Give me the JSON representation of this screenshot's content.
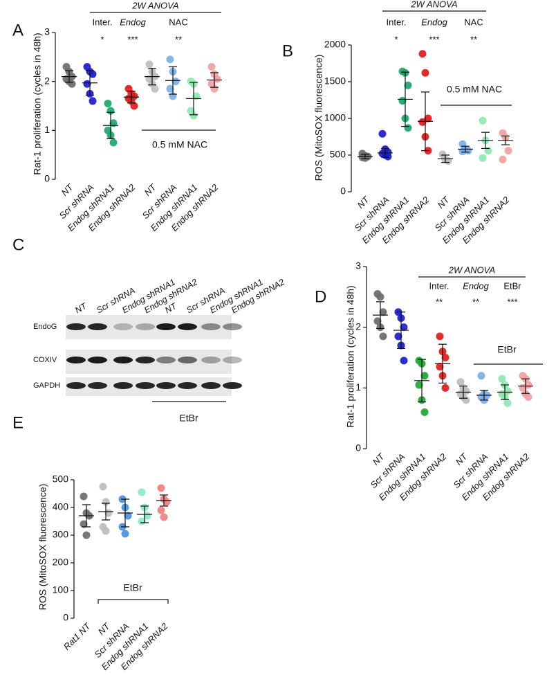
{
  "chart_data": [
    {
      "type": "strip",
      "panel_label": "A",
      "y_label": "Rat-1 proliferation (cycles in 48h)",
      "anova_title": "2W ANOVA",
      "anova_factors": [
        "Inter.",
        "Endog",
        "NAC"
      ],
      "significance": [
        "*",
        "***",
        "**"
      ],
      "treatment_label": "0.5 mM NAC",
      "ylim": [
        0,
        3
      ],
      "yticks": [
        0,
        1,
        2,
        3
      ],
      "series": [
        {
          "name": "NT",
          "color": "#6b6b6b",
          "values": [
            2.3,
            2.2,
            2.1,
            2.05,
            2.0,
            1.95
          ],
          "mean": 2.1,
          "sd": 0.12
        },
        {
          "name": "Scr shRNA",
          "color": "#1c1ccc",
          "values": [
            2.3,
            2.2,
            2.15,
            1.95,
            1.75,
            1.6
          ],
          "mean": 1.97,
          "sd": 0.25
        },
        {
          "name": "Endog shRNA1",
          "color": "#1aa86a",
          "values": [
            1.55,
            1.4,
            1.15,
            1.0,
            0.9,
            0.75
          ],
          "mean": 1.1,
          "sd": 0.27
        },
        {
          "name": "Endog shRNA2",
          "color": "#e01a1a",
          "values": [
            1.85,
            1.75,
            1.7,
            1.65,
            1.6,
            1.5
          ],
          "mean": 1.68,
          "sd": 0.12
        },
        {
          "name": "NT",
          "color": "#bdbdbd",
          "values": [
            2.35,
            2.2,
            2.1,
            2.05,
            1.95,
            1.85
          ],
          "mean": 2.1,
          "sd": 0.17
        },
        {
          "name": "Scr shRNA",
          "color": "#7ab0ea",
          "values": [
            2.45,
            2.2,
            2.0,
            1.85,
            1.7
          ],
          "mean": 2.02,
          "sd": 0.28
        },
        {
          "name": "Endog shRNA1",
          "color": "#8de8b0",
          "values": [
            2.0,
            1.95,
            1.7,
            1.4,
            1.3
          ],
          "mean": 1.65,
          "sd": 0.33
        },
        {
          "name": "Endog shRNA2",
          "color": "#f2a0a0",
          "values": [
            2.3,
            2.15,
            2.05,
            1.95,
            1.85
          ],
          "mean": 2.03,
          "sd": 0.15
        }
      ]
    },
    {
      "type": "strip",
      "panel_label": "B",
      "y_label": "ROS (MitoSOX fluorescence)",
      "anova_title": "2W ANOVA",
      "anova_factors": [
        "Inter.",
        "Endog",
        "NAC"
      ],
      "significance": [
        "*",
        "***",
        "**"
      ],
      "treatment_label": "0.5 mM NAC",
      "ylim": [
        0,
        2000
      ],
      "yticks": [
        0,
        500,
        1000,
        1500,
        2000
      ],
      "series": [
        {
          "name": "NT",
          "color": "#6b6b6b",
          "values": [
            520,
            490,
            480,
            470,
            460
          ],
          "mean": 480,
          "sd": 30
        },
        {
          "name": "Scr shRNA",
          "color": "#1c1ccc",
          "values": [
            790,
            580,
            540,
            520,
            500,
            480
          ],
          "mean": 530,
          "sd": 60
        },
        {
          "name": "Endog shRNA1",
          "color": "#1aa86a",
          "values": [
            1640,
            1620,
            1450,
            1240,
            1000,
            870
          ],
          "mean": 1260,
          "sd": 370
        },
        {
          "name": "Endog shRNA2",
          "color": "#e01a1a",
          "values": [
            1880,
            1620,
            1000,
            950,
            750,
            560
          ],
          "mean": 960,
          "sd": 400
        },
        {
          "name": "NT",
          "color": "#bdbdbd",
          "values": [
            510,
            440,
            420
          ],
          "mean": 450,
          "sd": 50
        },
        {
          "name": "Scr shRNA",
          "color": "#7ab0ea",
          "values": [
            650,
            580,
            560,
            550
          ],
          "mean": 580,
          "sd": 40
        },
        {
          "name": "Endog shRNA1",
          "color": "#8de8b0",
          "values": [
            970,
            700,
            560,
            460
          ],
          "mean": 700,
          "sd": 110
        },
        {
          "name": "Endog shRNA2",
          "color": "#f2a0a0",
          "values": [
            800,
            740,
            560,
            440
          ],
          "mean": 700,
          "sd": 60
        }
      ]
    },
    {
      "type": "strip",
      "panel_label": "D",
      "y_label": "Rat-1 proliferation (cycles in 48h)",
      "anova_title": "2W ANOVA",
      "anova_factors": [
        "Inter.",
        "Endog",
        "EtBr"
      ],
      "significance": [
        "**",
        "**",
        "***"
      ],
      "treatment_label": "EtBr",
      "ylim": [
        0,
        3
      ],
      "yticks": [
        0,
        1,
        2,
        3
      ],
      "series": [
        {
          "name": "NT",
          "color": "#6b6b6b",
          "values": [
            2.55,
            2.5,
            2.25,
            2.1,
            2.0,
            1.85
          ],
          "mean": 2.2,
          "sd": 0.22
        },
        {
          "name": "Scr shRNA",
          "color": "#1c1ccc",
          "values": [
            2.25,
            2.15,
            2.0,
            1.85,
            1.7,
            1.45
          ],
          "mean": 1.95,
          "sd": 0.3
        },
        {
          "name": "Endog shRNA1",
          "color": "#1aa830",
          "values": [
            1.45,
            1.4,
            1.2,
            1.05,
            0.8,
            0.6
          ],
          "mean": 1.12,
          "sd": 0.35
        },
        {
          "name": "Endog shRNA2",
          "color": "#e01a1a",
          "values": [
            1.85,
            1.6,
            1.5,
            1.35,
            1.2,
            1.0
          ],
          "mean": 1.4,
          "sd": 0.32
        },
        {
          "name": "NT",
          "color": "#bdbdbd",
          "values": [
            1.1,
            1.0,
            0.95,
            0.9,
            0.85,
            0.8
          ],
          "mean": 0.93,
          "sd": 0.1
        },
        {
          "name": "Scr shRNA",
          "color": "#7ab0ea",
          "values": [
            1.2,
            0.9,
            0.88,
            0.85,
            0.8
          ],
          "mean": 0.88,
          "sd": 0.08
        },
        {
          "name": "Endog shRNA1",
          "color": "#8de8b0",
          "values": [
            1.15,
            1.05,
            0.95,
            0.9,
            0.85,
            0.75
          ],
          "mean": 0.93,
          "sd": 0.12
        },
        {
          "name": "Endog shRNA2",
          "color": "#f2a0a0",
          "values": [
            1.2,
            1.15,
            1.05,
            1.0,
            0.9,
            0.85
          ],
          "mean": 1.03,
          "sd": 0.12
        }
      ]
    },
    {
      "type": "strip",
      "panel_label": "E",
      "y_label": "ROS (MitoSOX  fluorescence)",
      "treatment_label": "EtBr",
      "ylim": [
        0,
        500
      ],
      "yticks": [
        0,
        100,
        200,
        300,
        400,
        500
      ],
      "series": [
        {
          "name": "Rat1 NT",
          "color": "#6b6b6b",
          "values": [
            440,
            380,
            370,
            340,
            300
          ],
          "mean": 370,
          "sd": 40
        },
        {
          "name": "NT",
          "color": "#bdbdbd",
          "values": [
            475,
            420,
            380,
            330,
            315
          ],
          "mean": 385,
          "sd": 30
        },
        {
          "name": "Scr shRNA",
          "color": "#4a90e2",
          "values": [
            430,
            400,
            370,
            330,
            305
          ],
          "mean": 380,
          "sd": 50
        },
        {
          "name": "Endog shRNA1",
          "color": "#8de8c8",
          "values": [
            455,
            400,
            370,
            350
          ],
          "mean": 375,
          "sd": 30
        },
        {
          "name": "Endog shRNA2",
          "color": "#f08080",
          "values": [
            470,
            430,
            420,
            390,
            365
          ],
          "mean": 425,
          "sd": 20
        }
      ]
    }
  ],
  "blot": {
    "panel_label": "C",
    "lanes": [
      "NT",
      "Scr shRNA",
      "Endog shRNA1",
      "Endog shRNA2",
      "NT",
      "Scr shRNA",
      "Endog shRNA1",
      "Endog shRNA2"
    ],
    "rows": [
      "EndoG",
      "COXIV",
      "GAPDH"
    ],
    "treatment_label": "EtBr"
  }
}
